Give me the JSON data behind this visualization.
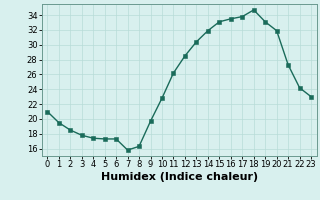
{
  "x": [
    0,
    1,
    2,
    3,
    4,
    5,
    6,
    7,
    8,
    9,
    10,
    11,
    12,
    13,
    14,
    15,
    16,
    17,
    18,
    19,
    20,
    21,
    22,
    23
  ],
  "y": [
    21,
    19.5,
    18.5,
    17.8,
    17.4,
    17.3,
    17.3,
    15.8,
    16.3,
    19.7,
    22.8,
    26.2,
    28.5,
    30.4,
    31.9,
    33.1,
    33.5,
    33.8,
    34.7,
    33.1,
    31.9,
    27.3,
    24.2,
    23.0
  ],
  "line_color": "#1a6b5a",
  "marker_color": "#1a6b5a",
  "bg_color": "#d8f0ee",
  "grid_color": "#b8dcd8",
  "xlabel": "Humidex (Indice chaleur)",
  "xlim": [
    -0.5,
    23.5
  ],
  "ylim": [
    15,
    35.5
  ],
  "yticks": [
    16,
    18,
    20,
    22,
    24,
    26,
    28,
    30,
    32,
    34
  ],
  "xticks": [
    0,
    1,
    2,
    3,
    4,
    5,
    6,
    7,
    8,
    9,
    10,
    11,
    12,
    13,
    14,
    15,
    16,
    17,
    18,
    19,
    20,
    21,
    22,
    23
  ],
  "tick_fontsize": 6.0,
  "xlabel_fontsize": 8.0,
  "marker_size": 2.5,
  "line_width": 1.0
}
